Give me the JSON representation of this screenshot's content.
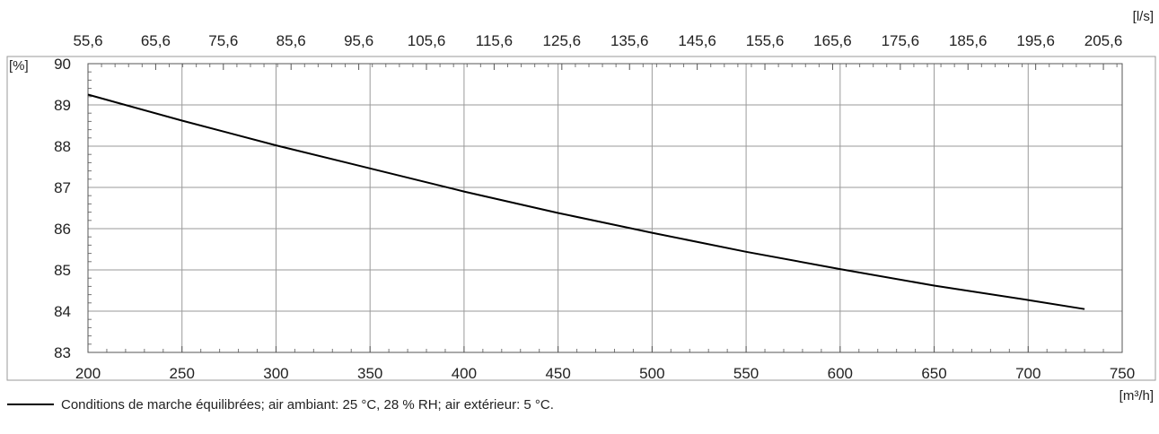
{
  "chart_data": {
    "type": "line",
    "x_unit_label": "[m³/h]",
    "top_unit_label": "[l/s]",
    "y_unit_label": "[%]",
    "xlim": [
      200,
      750
    ],
    "ylim": [
      83,
      90
    ],
    "x_ticks": [
      "200",
      "250",
      "300",
      "350",
      "400",
      "450",
      "500",
      "550",
      "600",
      "650",
      "700",
      "750"
    ],
    "y_ticks": [
      "83",
      "84",
      "85",
      "86",
      "87",
      "88",
      "89",
      "90"
    ],
    "top_ticks": [
      {
        "value": 200,
        "label": "55,6"
      },
      {
        "value": 236,
        "label": "65,6"
      },
      {
        "value": 272,
        "label": "75,6"
      },
      {
        "value": 308,
        "label": "85,6"
      },
      {
        "value": 344,
        "label": "95,6"
      },
      {
        "value": 380,
        "label": "105,6"
      },
      {
        "value": 416,
        "label": "115,6"
      },
      {
        "value": 452,
        "label": "125,6"
      },
      {
        "value": 488,
        "label": "135,6"
      },
      {
        "value": 524,
        "label": "145,6"
      },
      {
        "value": 560,
        "label": "155,6"
      },
      {
        "value": 596,
        "label": "165,6"
      },
      {
        "value": 632,
        "label": "175,6"
      },
      {
        "value": 668,
        "label": "185,6"
      },
      {
        "value": 704,
        "label": "195,6"
      },
      {
        "value": 740,
        "label": "205,6"
      }
    ],
    "grid": true,
    "series": [
      {
        "name": "Conditions de marche équilibrées; air ambiant: 25 °C, 28 % RH; air extérieur: 5 °C.",
        "color": "#000000",
        "x": [
          200,
          250,
          300,
          350,
          400,
          450,
          500,
          550,
          600,
          650,
          700,
          730
        ],
        "y": [
          89.25,
          88.62,
          88.02,
          87.46,
          86.9,
          86.38,
          85.9,
          85.44,
          85.02,
          84.62,
          84.27,
          84.05
        ]
      }
    ]
  }
}
